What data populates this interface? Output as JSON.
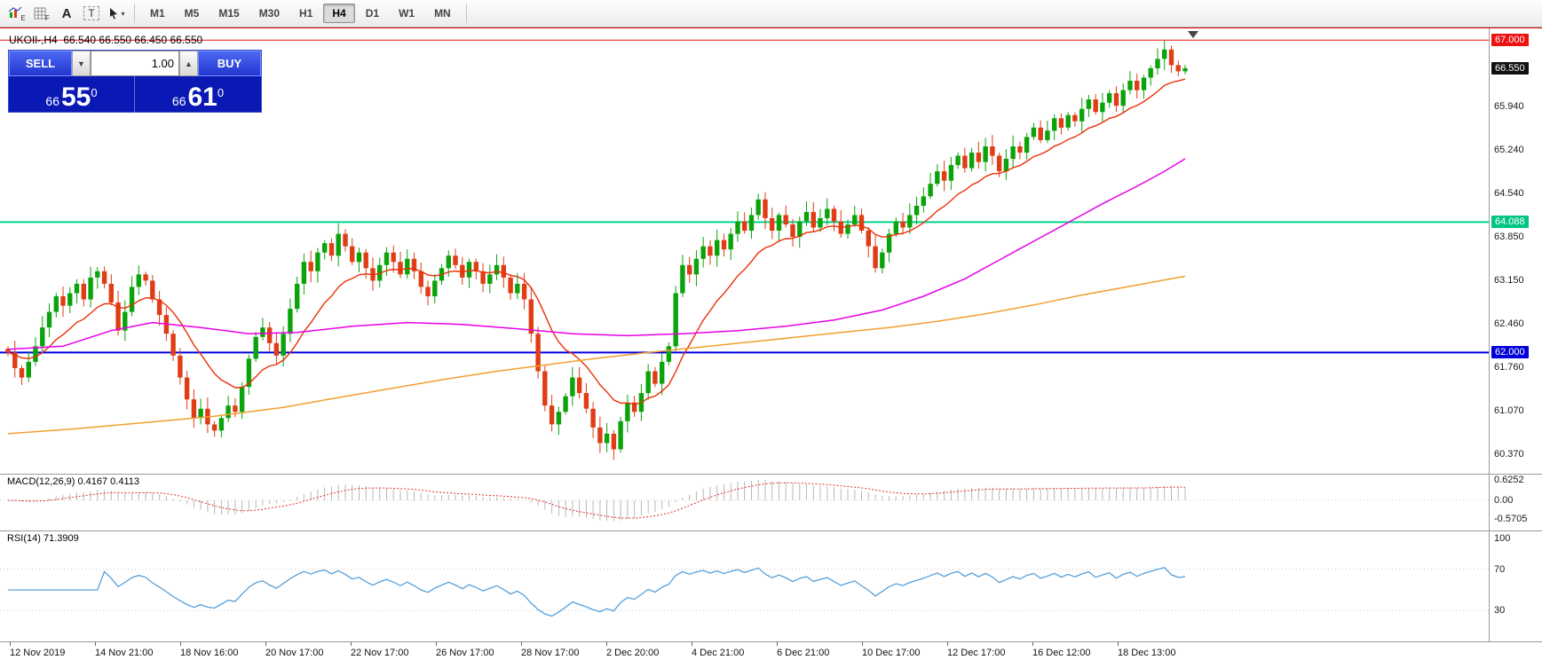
{
  "toolbar": {
    "icons": {
      "indicator_sub": "E",
      "grid_sub": "F",
      "a_label": "A",
      "t_label": "T",
      "cursor_caret": "▾"
    },
    "timeframes": [
      "M1",
      "M5",
      "M15",
      "M30",
      "H1",
      "H4",
      "D1",
      "W1",
      "MN"
    ],
    "active_timeframe": "H4"
  },
  "chart": {
    "title": "UKOIl-,H4",
    "ohlc_text": "66.540 66.550 66.450 66.550"
  },
  "trade_panel": {
    "sell_label": "SELL",
    "buy_label": "BUY",
    "volume": "1.00",
    "drop_glyph": "▼",
    "up_glyph": "▲",
    "bid": {
      "small": "66",
      "big": "55",
      "sup": "0"
    },
    "ask": {
      "small": "66",
      "big": "61",
      "sup": "0"
    }
  },
  "macd_panel": {
    "label": "MACD(12,26,9) 0.4167 0.4113"
  },
  "rsi_panel": {
    "label": "RSI(14) 71.3909"
  },
  "chart_data": {
    "type": "candlestick",
    "symbol": "UKOIl-",
    "timeframe": "H4",
    "current_bar": {
      "open": 66.54,
      "high": 66.55,
      "low": 66.45,
      "close": 66.55
    },
    "price_axis": {
      "top_price": 67.06,
      "bottom_price": 60.06,
      "ticks": [
        65.94,
        65.24,
        64.54,
        63.85,
        63.15,
        62.46,
        61.76,
        61.07,
        60.37
      ],
      "badges": [
        {
          "price": 67.0,
          "text": "67.000",
          "bg": "#ee1111",
          "fg": "#ffffff"
        },
        {
          "price": 66.55,
          "text": "66.550",
          "bg": "#101010",
          "fg": "#ffffff"
        },
        {
          "price": 64.088,
          "text": "64.088",
          "bg": "#00c584",
          "fg": "#ffffff"
        },
        {
          "price": 62.0,
          "text": "62.000",
          "bg": "#0000d8",
          "fg": "#ffffff"
        }
      ]
    },
    "hlines": [
      {
        "price": 67.0,
        "color": "#ee1111",
        "width": 1
      },
      {
        "price": 64.088,
        "color": "#00d48c",
        "width": 2
      },
      {
        "price": 62.0,
        "color": "#0000e0",
        "width": 2
      }
    ],
    "colors": {
      "up": "#0ba30b",
      "down": "#e03c16",
      "ma_fast": "#ea2f07"
    },
    "closes": [
      62.0,
      61.75,
      61.6,
      61.85,
      62.1,
      62.4,
      62.65,
      62.9,
      62.75,
      62.95,
      63.1,
      62.85,
      63.2,
      63.3,
      63.1,
      62.8,
      62.35,
      62.65,
      63.05,
      63.25,
      63.15,
      62.85,
      62.6,
      62.3,
      61.95,
      61.6,
      61.25,
      60.95,
      61.1,
      60.85,
      60.75,
      60.95,
      61.15,
      61.05,
      61.45,
      61.9,
      62.25,
      62.4,
      62.15,
      61.95,
      62.3,
      62.7,
      63.1,
      63.45,
      63.3,
      63.6,
      63.75,
      63.55,
      63.9,
      63.7,
      63.45,
      63.6,
      63.35,
      63.15,
      63.4,
      63.6,
      63.45,
      63.25,
      63.5,
      63.3,
      63.05,
      62.9,
      63.15,
      63.35,
      63.55,
      63.4,
      63.2,
      63.45,
      63.3,
      63.1,
      63.25,
      63.4,
      63.2,
      62.95,
      63.1,
      62.85,
      62.3,
      61.7,
      61.15,
      60.85,
      61.05,
      61.3,
      61.6,
      61.35,
      61.1,
      60.8,
      60.55,
      60.7,
      60.45,
      60.9,
      61.2,
      61.05,
      61.35,
      61.7,
      61.5,
      61.85,
      62.1,
      62.95,
      63.4,
      63.25,
      63.5,
      63.7,
      63.55,
      63.8,
      63.65,
      63.9,
      64.1,
      63.95,
      64.2,
      64.45,
      64.15,
      63.95,
      64.2,
      64.05,
      63.85,
      64.1,
      64.25,
      64.0,
      64.15,
      64.3,
      64.1,
      63.9,
      64.05,
      64.2,
      63.95,
      63.7,
      63.35,
      63.6,
      63.9,
      64.1,
      64.0,
      64.2,
      64.35,
      64.5,
      64.7,
      64.9,
      64.75,
      65.0,
      65.15,
      64.95,
      65.2,
      65.05,
      65.3,
      65.15,
      64.9,
      65.1,
      65.3,
      65.2,
      65.45,
      65.6,
      65.4,
      65.55,
      65.75,
      65.6,
      65.8,
      65.7,
      65.9,
      66.05,
      65.85,
      66.0,
      66.15,
      65.95,
      66.2,
      66.35,
      66.2,
      66.4,
      66.55,
      66.7,
      66.85,
      66.6,
      66.5,
      66.55
    ],
    "ma_magenta": {
      "color": "#e800e8",
      "points": [
        [
          0,
          62.05
        ],
        [
          8,
          62.1
        ],
        [
          15,
          62.35
        ],
        [
          21,
          62.48
        ],
        [
          28,
          62.4
        ],
        [
          35,
          62.3
        ],
        [
          42,
          62.32
        ],
        [
          50,
          62.42
        ],
        [
          58,
          62.48
        ],
        [
          66,
          62.45
        ],
        [
          74,
          62.38
        ],
        [
          82,
          62.3
        ],
        [
          90,
          62.27
        ],
        [
          98,
          62.3
        ],
        [
          106,
          62.35
        ],
        [
          113,
          62.42
        ],
        [
          120,
          62.52
        ],
        [
          127,
          62.68
        ],
        [
          133,
          62.9
        ],
        [
          139,
          63.18
        ],
        [
          144,
          63.48
        ],
        [
          149,
          63.78
        ],
        [
          154,
          64.08
        ],
        [
          159,
          64.38
        ],
        [
          164,
          64.66
        ],
        [
          168,
          64.9
        ],
        [
          171,
          65.1
        ]
      ]
    },
    "ma_orange": {
      "color": "#f0a030",
      "points": [
        [
          0,
          60.7
        ],
        [
          10,
          60.78
        ],
        [
          20,
          60.88
        ],
        [
          30,
          60.98
        ],
        [
          40,
          61.12
        ],
        [
          48,
          61.28
        ],
        [
          57,
          61.45
        ],
        [
          64,
          61.58
        ],
        [
          71,
          61.7
        ],
        [
          78,
          61.8
        ],
        [
          85,
          61.9
        ],
        [
          93,
          62.0
        ],
        [
          100,
          62.08
        ],
        [
          107,
          62.16
        ],
        [
          114,
          62.24
        ],
        [
          121,
          62.32
        ],
        [
          128,
          62.4
        ],
        [
          135,
          62.5
        ],
        [
          142,
          62.62
        ],
        [
          149,
          62.76
        ],
        [
          156,
          62.92
        ],
        [
          163,
          63.06
        ],
        [
          171,
          63.22
        ]
      ]
    },
    "macd": {
      "value": 0.4167,
      "signal_value": 0.4113,
      "histogram_color": "#b8b8b8",
      "signal_color": "#e03030",
      "axis": [
        {
          "v": 0.6252,
          "text": "0.6252"
        },
        {
          "v": 0,
          "text": "0.00"
        },
        {
          "v": -0.5705,
          "text": "-0.5705"
        }
      ]
    },
    "rsi": {
      "value": 71.3909,
      "color": "#55a0dc",
      "levels": [
        70,
        30
      ],
      "axis": [
        {
          "v": 100,
          "text": "100"
        },
        {
          "v": 70,
          "text": "70"
        },
        {
          "v": 30,
          "text": "30"
        }
      ]
    },
    "time_labels": [
      "12 Nov 2019",
      "14 Nov 21:00",
      "18 Nov 16:00",
      "20 Nov 17:00",
      "22 Nov 17:00",
      "26 Nov 17:00",
      "28 Nov 17:00",
      "2 Dec 20:00",
      "4 Dec 21:00",
      "6 Dec 21:00",
      "10 Dec 17:00",
      "12 Dec 17:00",
      "16 Dec 12:00",
      "18 Dec 13:00"
    ]
  }
}
